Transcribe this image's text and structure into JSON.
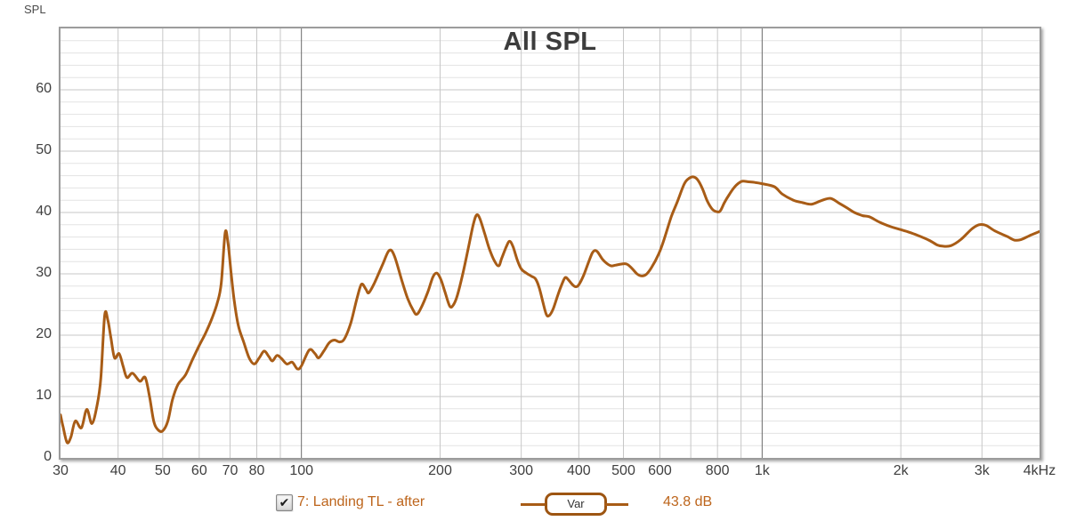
{
  "page": {
    "corner_label": "SPL"
  },
  "colors": {
    "trace": "#a85c16",
    "legend_text": "#bd651c",
    "marker_border": "#9d5512",
    "grid_minor": "#e3e3e3",
    "grid_major": "#c7c7c7",
    "grid_dark": "#6a6a6a",
    "axis_text": "#3f3f3f",
    "title_text": "#3c3c3c"
  },
  "legend": {
    "checked": true
  },
  "chart_data": {
    "type": "line",
    "title": "All SPL",
    "x_axis": {
      "scale": "log",
      "min": 30,
      "max": 4000,
      "ticks": [
        {
          "v": 30,
          "label": "30"
        },
        {
          "v": 40,
          "label": "40"
        },
        {
          "v": 50,
          "label": "50"
        },
        {
          "v": 60,
          "label": "60"
        },
        {
          "v": 70,
          "label": "70"
        },
        {
          "v": 80,
          "label": "80"
        },
        {
          "v": 100,
          "label": "100"
        },
        {
          "v": 200,
          "label": "200"
        },
        {
          "v": 300,
          "label": "300"
        },
        {
          "v": 400,
          "label": "400"
        },
        {
          "v": 500,
          "label": "500"
        },
        {
          "v": 600,
          "label": "600"
        },
        {
          "v": 800,
          "label": "800"
        },
        {
          "v": 1000,
          "label": "1k"
        },
        {
          "v": 2000,
          "label": "2k"
        },
        {
          "v": 3000,
          "label": "3k"
        },
        {
          "v": 4000,
          "label": "4kHz"
        }
      ],
      "gridlines": [
        40,
        50,
        60,
        70,
        80,
        90,
        100,
        200,
        300,
        400,
        500,
        600,
        700,
        800,
        900,
        1000,
        2000,
        3000
      ],
      "emphasized_gridlines": [
        100,
        1000
      ]
    },
    "y_axis": {
      "min": 0,
      "max": 70,
      "major_step": 10,
      "minor_step": 2,
      "tick_labels": [
        "0",
        "10",
        "20",
        "30",
        "40",
        "50",
        "60"
      ]
    },
    "series": [
      {
        "name": "7: Landing TL - after",
        "marker_label": "Var",
        "value_label": "43.8 dB",
        "points": [
          [
            30,
            7.0
          ],
          [
            30.4,
            5.0
          ],
          [
            31,
            2.5
          ],
          [
            31.6,
            3.4
          ],
          [
            32.3,
            6.0
          ],
          [
            33.3,
            4.9
          ],
          [
            34.2,
            7.9
          ],
          [
            35.1,
            5.6
          ],
          [
            36,
            8.5
          ],
          [
            36.7,
            13
          ],
          [
            37.4,
            23.2
          ],
          [
            38,
            22.5
          ],
          [
            38.6,
            19.5
          ],
          [
            39.3,
            16.3
          ],
          [
            40.2,
            17.0
          ],
          [
            41,
            15
          ],
          [
            41.8,
            13.1
          ],
          [
            43,
            13.8
          ],
          [
            44.6,
            12.5
          ],
          [
            45.8,
            13.1
          ],
          [
            46.8,
            10
          ],
          [
            47.8,
            6
          ],
          [
            48.8,
            4.6
          ],
          [
            50,
            4.4
          ],
          [
            51.3,
            6
          ],
          [
            52.5,
            9.5
          ],
          [
            54,
            12
          ],
          [
            56,
            13.5
          ],
          [
            58,
            16
          ],
          [
            60,
            18.3
          ],
          [
            62,
            20.4
          ],
          [
            64,
            22.8
          ],
          [
            65.7,
            25.3
          ],
          [
            67,
            28.5
          ],
          [
            68.3,
            36.7
          ],
          [
            69.3,
            35
          ],
          [
            70.3,
            30.5
          ],
          [
            71.5,
            25.5
          ],
          [
            73,
            21.5
          ],
          [
            75,
            18.8
          ],
          [
            77,
            16.3
          ],
          [
            79,
            15.3
          ],
          [
            81,
            16.3
          ],
          [
            83,
            17.4
          ],
          [
            85,
            16.5
          ],
          [
            86.5,
            15.8
          ],
          [
            88.5,
            16.7
          ],
          [
            90.5,
            16.2
          ],
          [
            93,
            15.3
          ],
          [
            95.5,
            15.6
          ],
          [
            98,
            14.5
          ],
          [
            100,
            15.0
          ],
          [
            104,
            17.6
          ],
          [
            107,
            17.0
          ],
          [
            109,
            16.3
          ],
          [
            112,
            17.5
          ],
          [
            115,
            18.8
          ],
          [
            118,
            19.2
          ],
          [
            121,
            18.9
          ],
          [
            124,
            19.4
          ],
          [
            128,
            22
          ],
          [
            132,
            26
          ],
          [
            135,
            28.3
          ],
          [
            138,
            27.5
          ],
          [
            140,
            26.9
          ],
          [
            144,
            28.5
          ],
          [
            150,
            31.5
          ],
          [
            155,
            33.8
          ],
          [
            159,
            33
          ],
          [
            165,
            29
          ],
          [
            170,
            26
          ],
          [
            175,
            24
          ],
          [
            178,
            23.4
          ],
          [
            182,
            24.5
          ],
          [
            188,
            27
          ],
          [
            193,
            29.5
          ],
          [
            197,
            30.1
          ],
          [
            201,
            29
          ],
          [
            205,
            27
          ],
          [
            210,
            24.7
          ],
          [
            214,
            25
          ],
          [
            218,
            26.5
          ],
          [
            224,
            30
          ],
          [
            230,
            34
          ],
          [
            236,
            38
          ],
          [
            240,
            39.6
          ],
          [
            244,
            39
          ],
          [
            250,
            36.5
          ],
          [
            256,
            34
          ],
          [
            262,
            32.2
          ],
          [
            268,
            31.3
          ],
          [
            272,
            32.5
          ],
          [
            278,
            34.3
          ],
          [
            283,
            35.3
          ],
          [
            288,
            34.4
          ],
          [
            294,
            32.3
          ],
          [
            300,
            30.8
          ],
          [
            308,
            30.1
          ],
          [
            316,
            29.6
          ],
          [
            322,
            29.2
          ],
          [
            328,
            27.8
          ],
          [
            334,
            25.5
          ],
          [
            340,
            23.4
          ],
          [
            345,
            23.2
          ],
          [
            352,
            24.3
          ],
          [
            360,
            26.5
          ],
          [
            368,
            28.4
          ],
          [
            374,
            29.4
          ],
          [
            380,
            29.0
          ],
          [
            388,
            28.2
          ],
          [
            394,
            27.9
          ],
          [
            400,
            28.2
          ],
          [
            410,
            29.8
          ],
          [
            420,
            31.9
          ],
          [
            428,
            33.4
          ],
          [
            434,
            33.8
          ],
          [
            440,
            33.5
          ],
          [
            450,
            32.4
          ],
          [
            460,
            31.7
          ],
          [
            470,
            31.3
          ],
          [
            480,
            31.4
          ],
          [
            495,
            31.6
          ],
          [
            508,
            31.6
          ],
          [
            520,
            31.0
          ],
          [
            535,
            30.0
          ],
          [
            548,
            29.65
          ],
          [
            560,
            29.9
          ],
          [
            575,
            31
          ],
          [
            596,
            33.2
          ],
          [
            612,
            35.5
          ],
          [
            635,
            39.3
          ],
          [
            655,
            41.8
          ],
          [
            678,
            44.7
          ],
          [
            695,
            45.6
          ],
          [
            710,
            45.8
          ],
          [
            725,
            45.3
          ],
          [
            742,
            43.9
          ],
          [
            760,
            41.9
          ],
          [
            780,
            40.5
          ],
          [
            800,
            40.1
          ],
          [
            812,
            40.3
          ],
          [
            828,
            41.6
          ],
          [
            848,
            42.9
          ],
          [
            868,
            44.0
          ],
          [
            890,
            44.8
          ],
          [
            908,
            45.1
          ],
          [
            935,
            45.0
          ],
          [
            965,
            44.9
          ],
          [
            1000,
            44.7
          ],
          [
            1063,
            44.2
          ],
          [
            1106,
            43.0
          ],
          [
            1170,
            42.0
          ],
          [
            1225,
            41.6
          ],
          [
            1280,
            41.35
          ],
          [
            1340,
            41.9
          ],
          [
            1407,
            42.3
          ],
          [
            1470,
            41.5
          ],
          [
            1540,
            40.6
          ],
          [
            1586,
            40.0
          ],
          [
            1650,
            39.5
          ],
          [
            1709,
            39.3
          ],
          [
            1800,
            38.4
          ],
          [
            1900,
            37.7
          ],
          [
            2000,
            37.2
          ],
          [
            2080,
            36.8
          ],
          [
            2170,
            36.3
          ],
          [
            2300,
            35.5
          ],
          [
            2400,
            34.7
          ],
          [
            2470,
            34.5
          ],
          [
            2570,
            34.6
          ],
          [
            2700,
            35.6
          ],
          [
            2850,
            37.3
          ],
          [
            2956,
            38.0
          ],
          [
            3060,
            37.9
          ],
          [
            3200,
            37.0
          ],
          [
            3400,
            36.1
          ],
          [
            3530,
            35.5
          ],
          [
            3650,
            35.6
          ],
          [
            3800,
            36.2
          ],
          [
            4000,
            36.9
          ]
        ]
      }
    ]
  }
}
